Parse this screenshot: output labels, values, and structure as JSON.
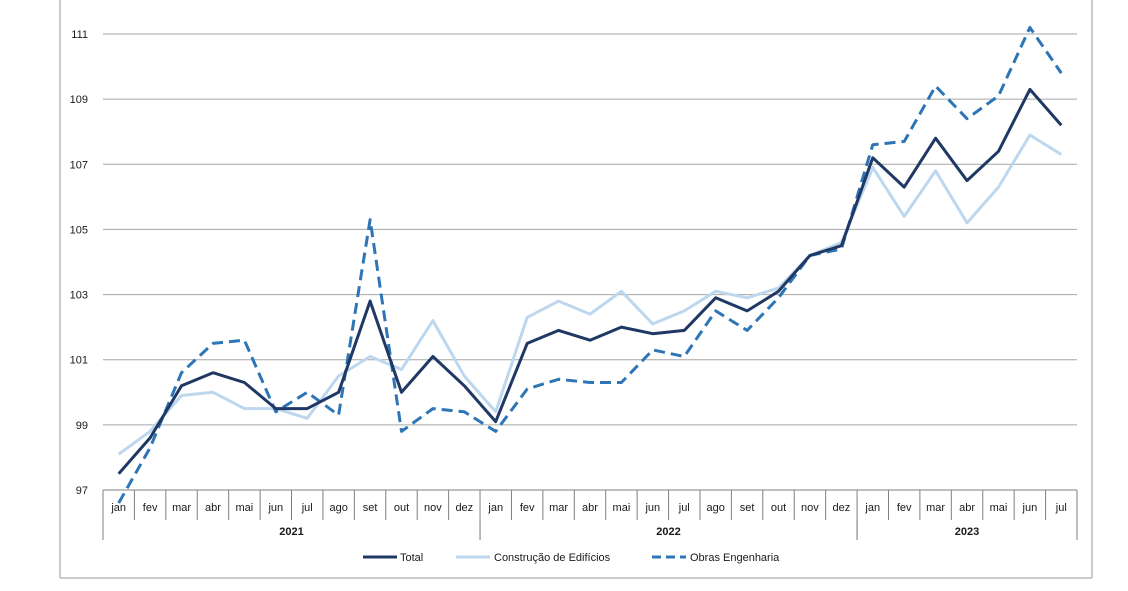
{
  "chart_data": {
    "type": "line",
    "title": "",
    "xlabel": "",
    "ylabel": "",
    "ylim": [
      97,
      111
    ],
    "yticks": [
      97,
      99,
      101,
      103,
      105,
      107,
      109,
      111
    ],
    "grid": true,
    "legend_position": "bottom",
    "months": [
      "jan",
      "fev",
      "mar",
      "abr",
      "mai",
      "jun",
      "jul",
      "ago",
      "set",
      "out",
      "nov",
      "dez",
      "jan",
      "fev",
      "mar",
      "abr",
      "mai",
      "jun",
      "jul",
      "ago",
      "set",
      "out",
      "nov",
      "dez",
      "jan",
      "fev",
      "mar",
      "abr",
      "mai",
      "jun",
      "jul"
    ],
    "years": [
      {
        "label": "2021",
        "start": 0,
        "count": 12
      },
      {
        "label": "2022",
        "start": 12,
        "count": 12
      },
      {
        "label": "2023",
        "start": 24,
        "count": 7
      }
    ],
    "series": [
      {
        "name": "Total",
        "color": "#1f3864",
        "style": "solid",
        "values": [
          97.5,
          98.6,
          100.2,
          100.6,
          100.3,
          99.5,
          99.5,
          100.0,
          102.8,
          100.0,
          101.1,
          100.2,
          99.1,
          101.5,
          101.9,
          101.6,
          102.0,
          101.8,
          101.9,
          102.9,
          102.5,
          103.1,
          104.2,
          104.5,
          107.2,
          106.3,
          107.8,
          106.5,
          107.4,
          109.3,
          108.2
        ]
      },
      {
        "name": "Construção de Edifícios",
        "color": "#bdd7ee",
        "style": "solid",
        "values": [
          98.1,
          98.8,
          99.9,
          100.0,
          99.5,
          99.5,
          99.2,
          100.5,
          101.1,
          100.7,
          102.2,
          100.5,
          99.4,
          102.3,
          102.8,
          102.4,
          103.1,
          102.1,
          102.5,
          103.1,
          102.9,
          103.2,
          104.2,
          104.6,
          106.9,
          105.4,
          106.8,
          105.2,
          106.3,
          107.9,
          107.3
        ]
      },
      {
        "name": "Obras Engenharia",
        "color": "#2e75b6",
        "style": "dashed",
        "values": [
          96.6,
          98.3,
          100.6,
          101.5,
          101.6,
          99.4,
          100.0,
          99.3,
          105.3,
          98.8,
          99.5,
          99.4,
          98.8,
          100.1,
          100.4,
          100.3,
          100.3,
          101.3,
          101.1,
          102.5,
          101.9,
          102.9,
          104.2,
          104.4,
          107.6,
          107.7,
          109.4,
          108.4,
          109.1,
          111.2,
          109.8
        ]
      }
    ]
  }
}
